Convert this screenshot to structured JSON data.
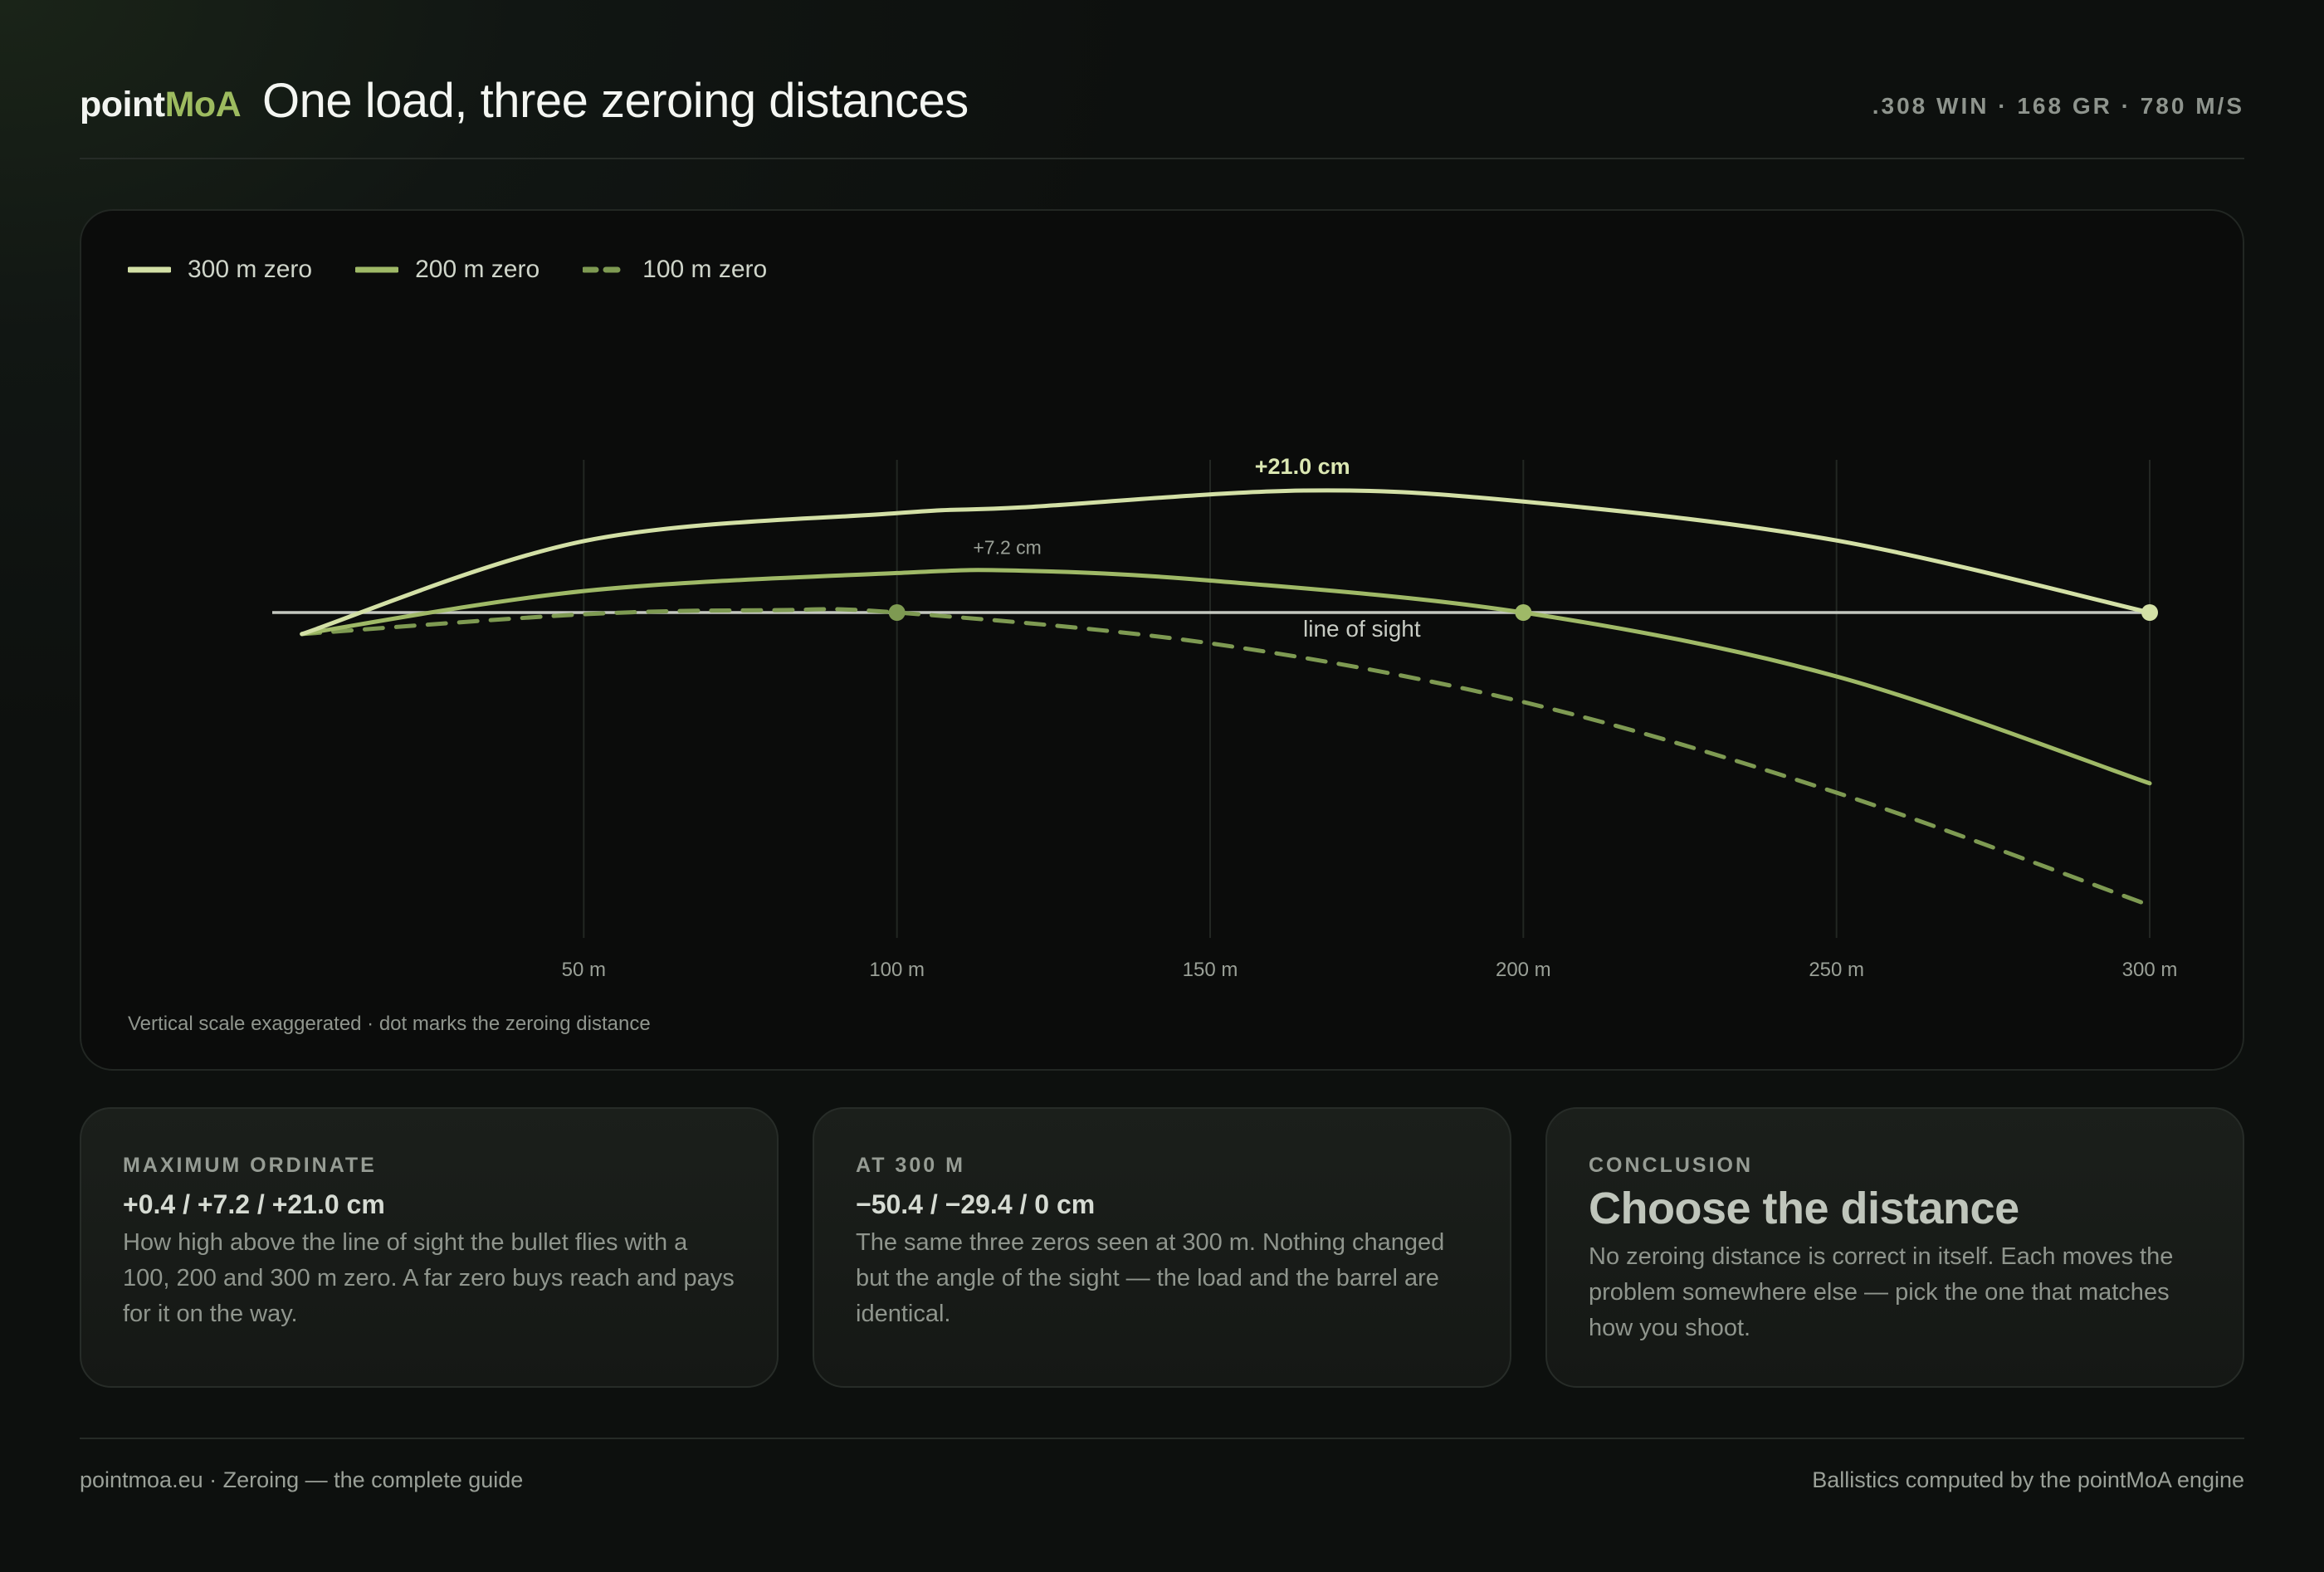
{
  "header": {
    "logo_a": "point",
    "logo_b": "MoA",
    "title": "One load, three zeroing distances",
    "load": ".308 WIN · 168 GR · 780 M/S"
  },
  "colors": {
    "zero300": "#d3e0a6",
    "zero200": "#9fb967",
    "zero100": "#7e9a52",
    "line_of_sight": "#c4c8c0",
    "grid": "#232723"
  },
  "chart_data": {
    "type": "line",
    "x_unit": "m",
    "y_unit": "cm",
    "xlim": [
      0,
      300
    ],
    "ylim": [
      -75,
      21
    ],
    "line_of_sight_label": "line of sight",
    "x_ticks": [
      {
        "value": 50,
        "label": "50 m"
      },
      {
        "value": 100,
        "label": "100 m"
      },
      {
        "value": 150,
        "label": "150 m"
      },
      {
        "value": 200,
        "label": "200 m"
      },
      {
        "value": 250,
        "label": "250 m"
      },
      {
        "value": 300,
        "label": "300 m"
      }
    ],
    "series": [
      {
        "name": "300 m zero",
        "key": "zero300",
        "dashed": false,
        "zero": 300,
        "points": [
          [
            5,
            -3.7
          ],
          [
            50,
            12.3
          ],
          [
            100,
            17.1
          ],
          [
            120,
            18.1
          ],
          [
            165,
            21.0
          ],
          [
            200,
            19.1
          ],
          [
            250,
            12.4
          ],
          [
            300,
            0
          ]
        ]
      },
      {
        "name": "200 m zero",
        "key": "zero200",
        "dashed": false,
        "zero": 200,
        "points": [
          [
            5,
            -3.7
          ],
          [
            50,
            3.7
          ],
          [
            100,
            6.8
          ],
          [
            120,
            7.2
          ],
          [
            150,
            5.5
          ],
          [
            200,
            0
          ],
          [
            250,
            -11.0
          ],
          [
            300,
            -29.4
          ]
        ]
      },
      {
        "name": "100 m zero",
        "key": "zero100",
        "dashed": false,
        "dashed_style": true,
        "zero": 100,
        "points": [
          [
            5,
            -3.7
          ],
          [
            50,
            -0.3
          ],
          [
            80,
            0.4
          ],
          [
            100,
            0
          ],
          [
            150,
            -5.3
          ],
          [
            200,
            -15.4
          ],
          [
            250,
            -31.0
          ],
          [
            300,
            -50.4
          ]
        ]
      }
    ],
    "annotations": [
      {
        "x": 165,
        "y": 21.0,
        "text": "+21.0 cm",
        "key": "zero300"
      },
      {
        "x": 120,
        "y": 7.2,
        "text": "+7.2 cm",
        "key": "zero200"
      }
    ],
    "footnote": "Vertical scale exaggerated · dot marks the zeroing distance"
  },
  "cards": [
    {
      "kicker": "MAXIMUM ORDINATE",
      "value": "+0.4 / +7.2 / +21.0 cm",
      "body": "How high above the line of sight the bullet flies with a 100, 200 and 300 m zero. A far zero buys reach and pays for it on the way."
    },
    {
      "kicker": "AT 300 M",
      "value": "−50.4 / −29.4 / 0 cm",
      "body": "The same three zeros seen at 300 m. Nothing changed but the angle of the sight — the load and the barrel are identical."
    },
    {
      "kicker": "CONCLUSION",
      "title": "Choose the distance",
      "body": "No zeroing distance is correct in itself. Each moves the problem somewhere else — pick the one that matches how you shoot."
    }
  ],
  "footer": {
    "left": "pointmoa.eu · Zeroing — the complete guide",
    "right": "Ballistics computed by the pointMoA engine"
  }
}
